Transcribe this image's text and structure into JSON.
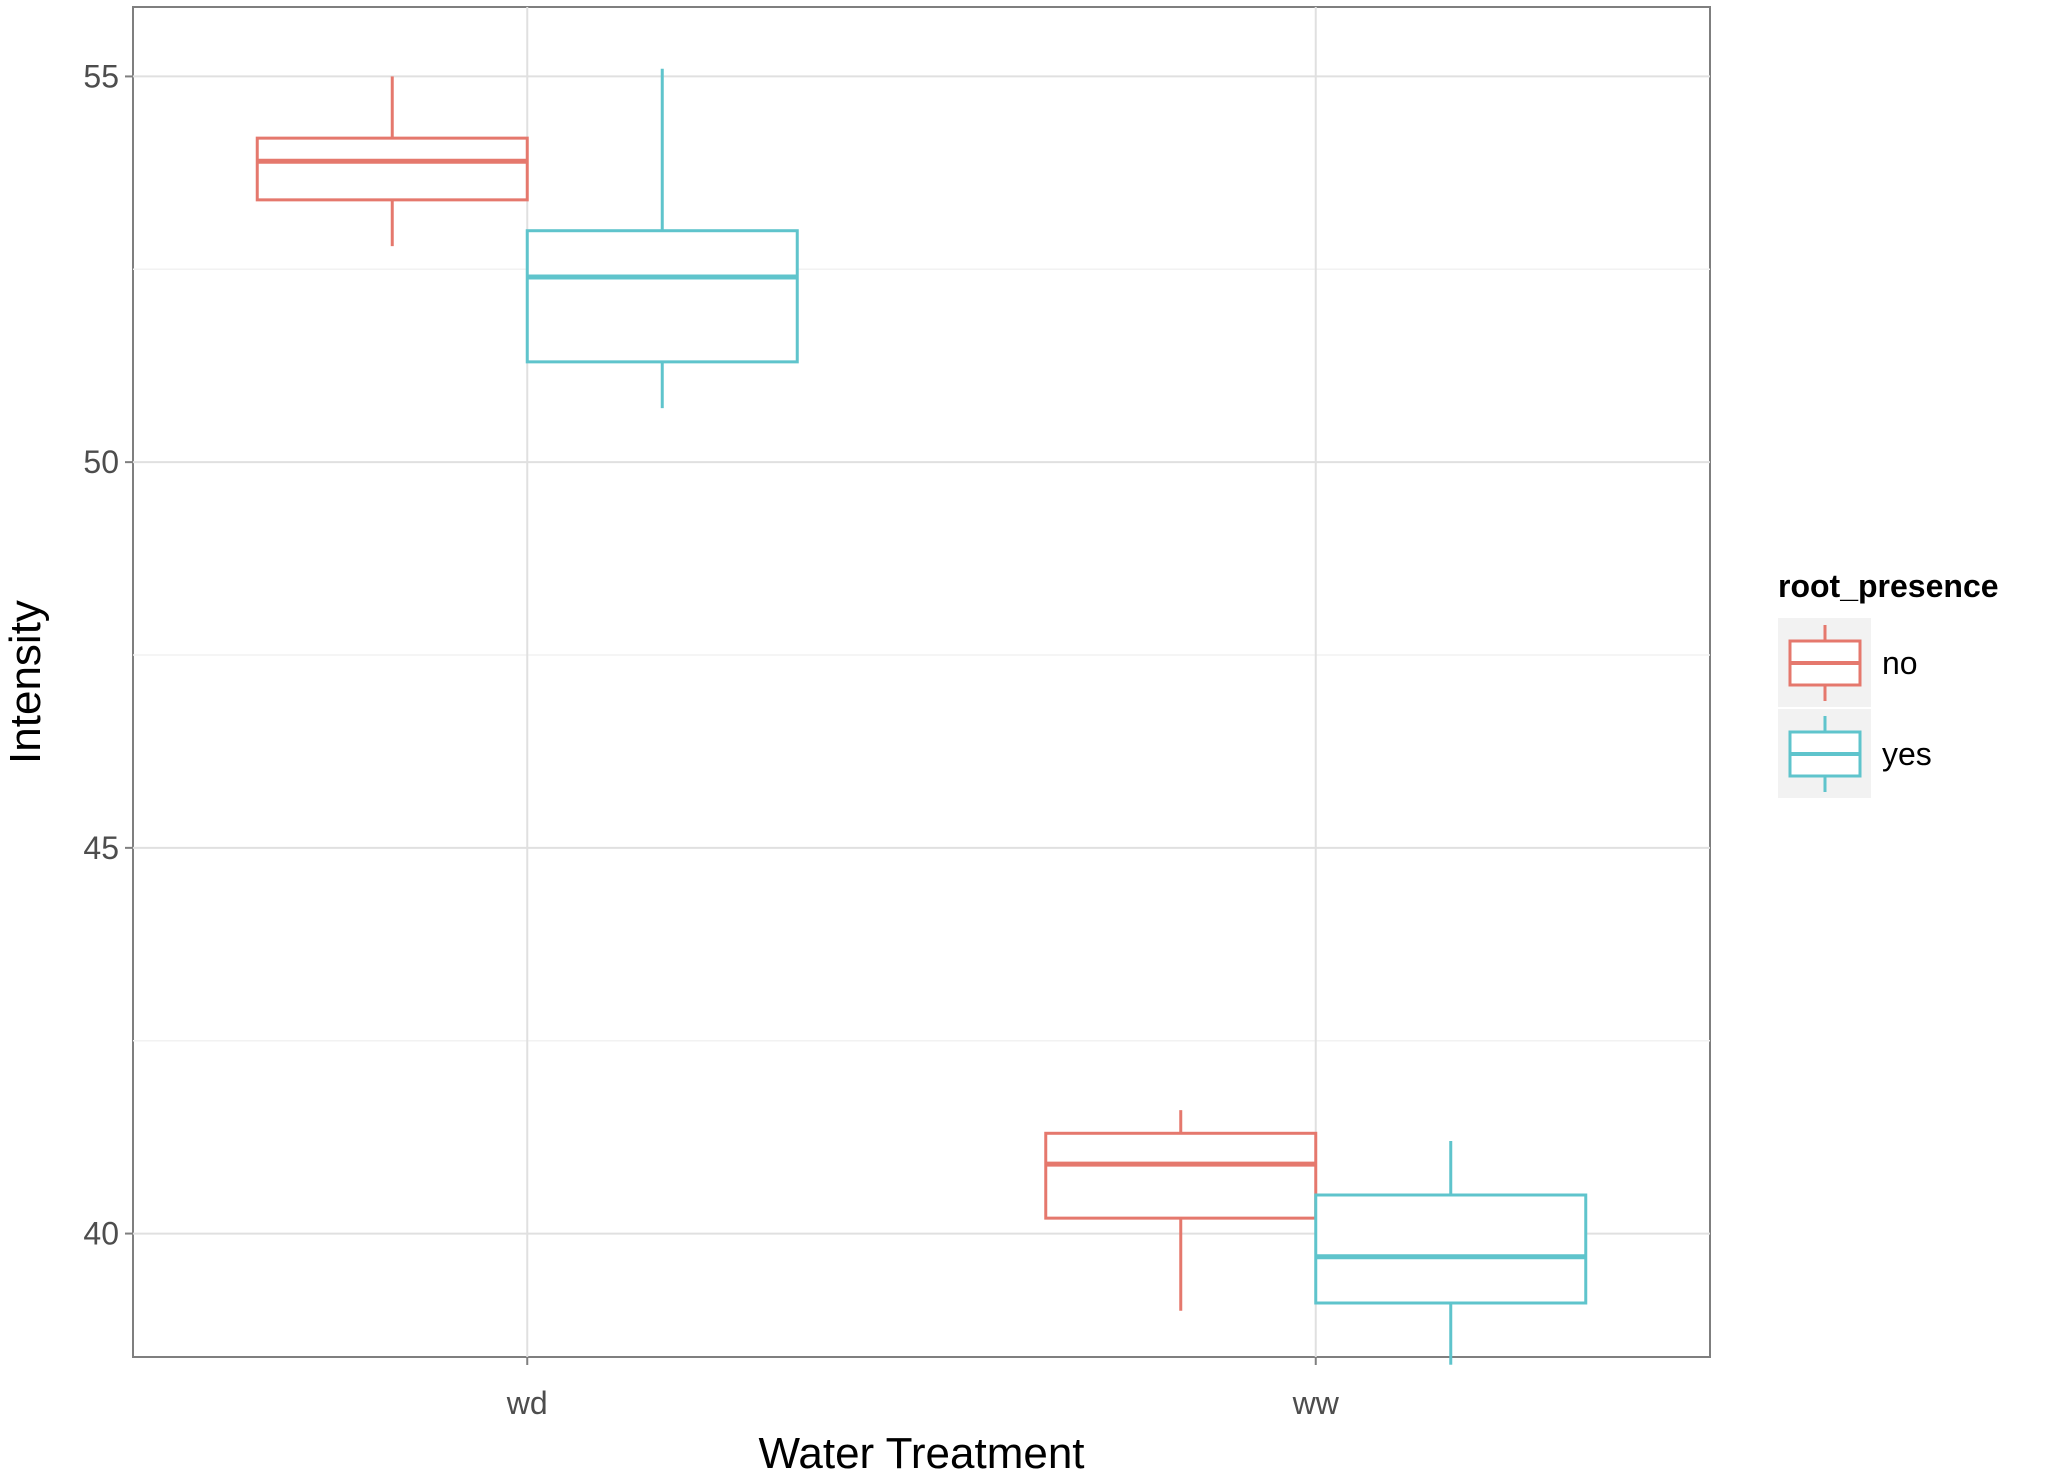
{
  "chart_data": {
    "type": "boxplot",
    "xlabel": "Water Treatment",
    "ylabel": "Intensity",
    "categories": [
      "wd",
      "ww"
    ],
    "ylim": [
      38.4,
      55.9
    ],
    "yticks": [
      40,
      45,
      50,
      55
    ],
    "grid": true,
    "legend": {
      "title": "root_presence",
      "position": "right",
      "entries": [
        "no",
        "yes"
      ]
    },
    "series": [
      {
        "name": "no",
        "color": "#E5786D",
        "boxes": [
          {
            "category": "wd",
            "whisker_low": 52.8,
            "q1": 53.4,
            "median": 53.9,
            "q3": 54.2,
            "whisker_high": 55.0
          },
          {
            "category": "ww",
            "whisker_low": 39.0,
            "q1": 40.2,
            "median": 40.9,
            "q3": 41.3,
            "whisker_high": 41.6
          }
        ]
      },
      {
        "name": "yes",
        "color": "#5FC4CC",
        "boxes": [
          {
            "category": "wd",
            "whisker_low": 50.7,
            "q1": 51.3,
            "median": 52.4,
            "q3": 53.0,
            "whisker_high": 55.1
          },
          {
            "category": "ww",
            "whisker_low": 38.3,
            "q1": 39.1,
            "median": 39.7,
            "q3": 40.5,
            "whisker_high": 41.2
          }
        ]
      }
    ]
  }
}
